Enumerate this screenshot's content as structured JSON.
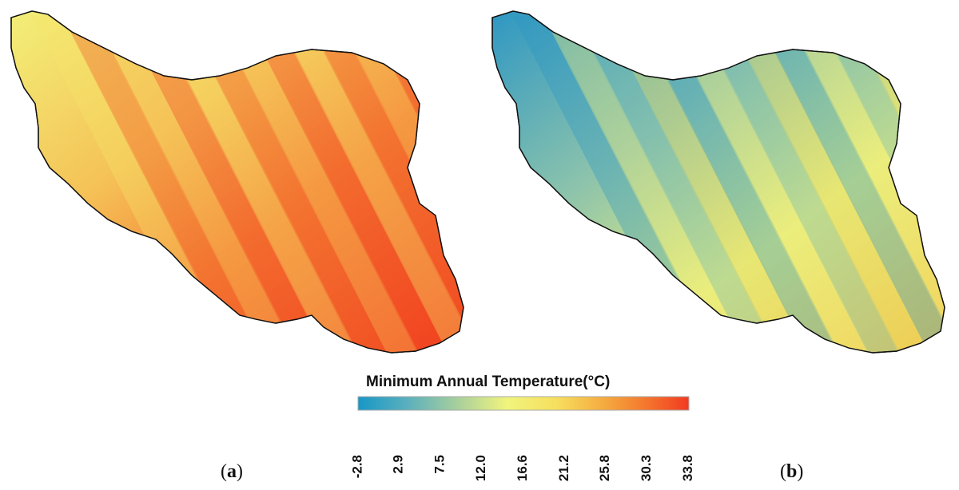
{
  "maps": [
    {
      "panel_label": "a",
      "color_scheme": "warm",
      "description_colors": {
        "low": "#f3f17a",
        "high": "#f43f1d"
      }
    },
    {
      "panel_label": "b",
      "color_scheme": "cool",
      "description_colors": {
        "low": "#2a94c4",
        "high": "#f1b43a"
      }
    }
  ],
  "legend": {
    "title": "Minimum Annual Temperature(°C)",
    "ticks": [
      "-2.8",
      "2.9",
      "7.5",
      "12.0",
      "16.6",
      "21.2",
      "25.8",
      "30.3",
      "33.8"
    ],
    "colors": [
      "#1797c7",
      "#6db3b9",
      "#b4d29a",
      "#f3f47c",
      "#f7da58",
      "#f4a53d",
      "#f3702c",
      "#f33e22"
    ]
  },
  "captions": {
    "a": {
      "open": "(",
      "label": "a",
      "close": ")"
    },
    "b": {
      "open": "(",
      "label": "b",
      "close": ")"
    }
  }
}
